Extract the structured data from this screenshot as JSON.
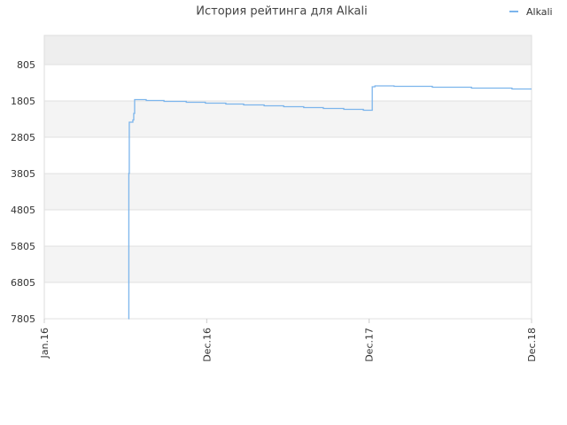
{
  "chart_data": {
    "type": "line",
    "title": "История рейтинга для Alkali",
    "x": [
      189,
      190,
      191,
      199,
      201,
      203,
      229,
      269,
      319,
      362,
      408,
      448,
      494,
      538,
      583,
      627,
      673,
      717,
      737,
      743,
      786,
      872,
      960,
      1051,
      1095
    ],
    "series": [
      {
        "name": "Alkali",
        "color": "#7cb5ec",
        "values": [
          7805,
          3800,
          2390,
          2330,
          2150,
          1768,
          1793,
          1817,
          1841,
          1866,
          1890,
          1915,
          1939,
          1963,
          1988,
          2012,
          2037,
          2061,
          1415,
          1390,
          1402,
          1427,
          1451,
          1476,
          1476
        ]
      }
    ],
    "xlim": [
      0,
      1095
    ],
    "xticks": [
      {
        "value": 0,
        "label": "Jan.16"
      },
      {
        "value": 365,
        "label": "Dec.16"
      },
      {
        "value": 730,
        "label": "Dec.17"
      },
      {
        "value": 1095,
        "label": "Dec.18"
      }
    ],
    "ylim": [
      7805,
      0
    ],
    "yticks": [
      805,
      1805,
      2805,
      3805,
      4805,
      5805,
      6805,
      7805
    ],
    "grid": true,
    "step": true,
    "legend": "top-right"
  }
}
